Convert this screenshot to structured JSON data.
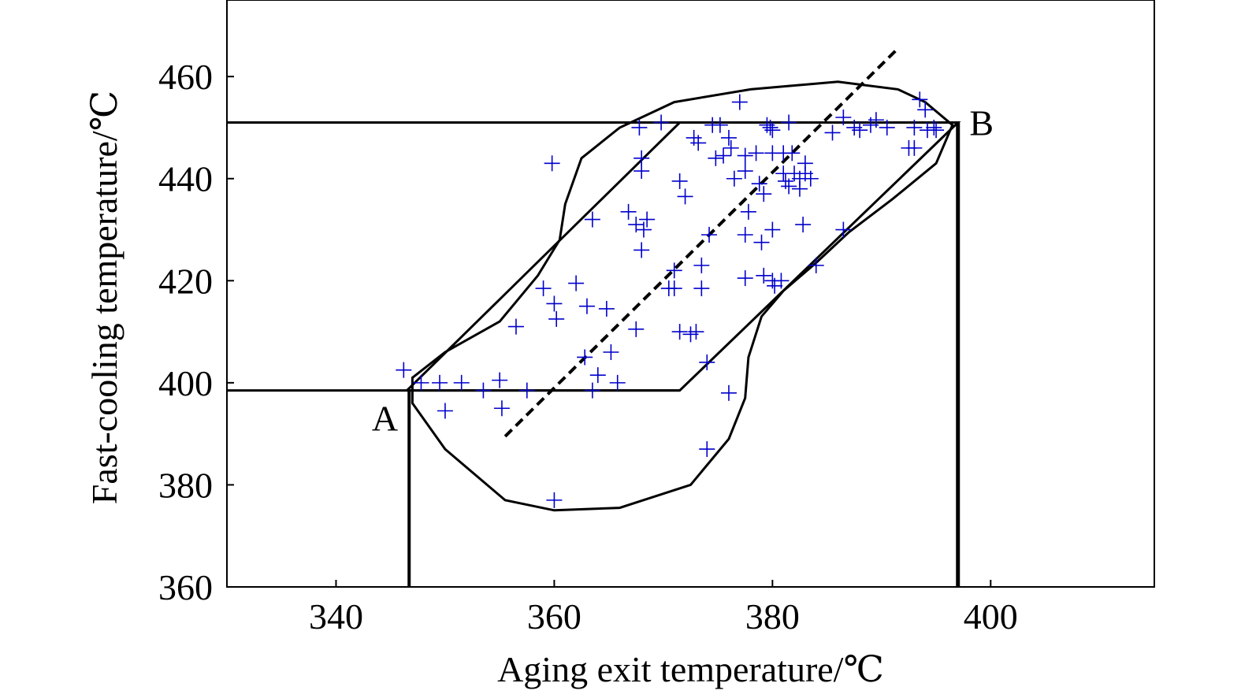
{
  "chart_data": {
    "type": "scatter",
    "title": "",
    "xlabel": "Aging exit temperature/℃",
    "ylabel": "Fast-cooling temperature/℃",
    "xlim": [
      330,
      415
    ],
    "ylim": [
      360,
      475
    ],
    "xticks": [
      340,
      360,
      380,
      400
    ],
    "yticks": [
      360,
      380,
      400,
      420,
      440,
      460
    ],
    "grid": false,
    "legend": "none",
    "colors": {
      "points": "#0000cc",
      "lines": "#000000"
    },
    "series": [
      {
        "marker": "plus",
        "points": [
          [
            346.2,
            402.5
          ],
          [
            347.8,
            400
          ],
          [
            349.5,
            400
          ],
          [
            350,
            394.5
          ],
          [
            351.5,
            400
          ],
          [
            353.5,
            398.5
          ],
          [
            355,
            400.5
          ],
          [
            355.2,
            395
          ],
          [
            357.5,
            398.5
          ],
          [
            356.5,
            411
          ],
          [
            359,
            418.5
          ],
          [
            360,
            415.5
          ],
          [
            360.2,
            412.5
          ],
          [
            359.8,
            443
          ],
          [
            360,
            377
          ],
          [
            362,
            419.5
          ],
          [
            363,
            415
          ],
          [
            362.8,
            405
          ],
          [
            363.5,
            398.5
          ],
          [
            363.5,
            432
          ],
          [
            364,
            401.5
          ],
          [
            364.8,
            414.5
          ],
          [
            365.2,
            406
          ],
          [
            365.8,
            400
          ],
          [
            366.8,
            433.5
          ],
          [
            367.8,
            450
          ],
          [
            368,
            444
          ],
          [
            368,
            441.5
          ],
          [
            367.5,
            431
          ],
          [
            368.2,
            430
          ],
          [
            368.5,
            432
          ],
          [
            368,
            426
          ],
          [
            367.5,
            410.5
          ],
          [
            369.8,
            451
          ],
          [
            370.5,
            418.5
          ],
          [
            371,
            422
          ],
          [
            371,
            418.5
          ],
          [
            371.5,
            410
          ],
          [
            371.5,
            439.5
          ],
          [
            372,
            436.5
          ],
          [
            372.5,
            409.5
          ],
          [
            372.8,
            448
          ],
          [
            373.2,
            447
          ],
          [
            373,
            410
          ],
          [
            373.5,
            423
          ],
          [
            373.5,
            418.5
          ],
          [
            374,
            404
          ],
          [
            374,
            387
          ],
          [
            374.2,
            429
          ],
          [
            374.5,
            450.5
          ],
          [
            374.8,
            444
          ],
          [
            375.2,
            450.5
          ],
          [
            375.5,
            444.5
          ],
          [
            376,
            448
          ],
          [
            376.2,
            446
          ],
          [
            376.5,
            440
          ],
          [
            376,
            398
          ],
          [
            377,
            455
          ],
          [
            377.5,
            444.5
          ],
          [
            377.5,
            441.5
          ],
          [
            377.5,
            429
          ],
          [
            377.8,
            433.5
          ],
          [
            377.5,
            420.5
          ],
          [
            378.5,
            445
          ],
          [
            378.8,
            439
          ],
          [
            379.2,
            437
          ],
          [
            379,
            427.5
          ],
          [
            379.2,
            421
          ],
          [
            379.5,
            450.5
          ],
          [
            379.8,
            450
          ],
          [
            380,
            449.5
          ],
          [
            380,
            445
          ],
          [
            380,
            430
          ],
          [
            380,
            420
          ],
          [
            380.2,
            419
          ],
          [
            380.8,
            420
          ],
          [
            381,
            445
          ],
          [
            381,
            441
          ],
          [
            381.2,
            439.5
          ],
          [
            381.5,
            451
          ],
          [
            381.5,
            438.5
          ],
          [
            381.8,
            445
          ],
          [
            382,
            441
          ],
          [
            382.5,
            438
          ],
          [
            382.5,
            440
          ],
          [
            383,
            441
          ],
          [
            383,
            443
          ],
          [
            383.5,
            440
          ],
          [
            382.8,
            431
          ],
          [
            384,
            423
          ],
          [
            385.5,
            449
          ],
          [
            386.5,
            452
          ],
          [
            386.5,
            430
          ],
          [
            387.5,
            450
          ],
          [
            388,
            449.5
          ],
          [
            389,
            450.5
          ],
          [
            389.5,
            451.5
          ],
          [
            390.5,
            450
          ],
          [
            392.5,
            446
          ],
          [
            393,
            450
          ],
          [
            393.5,
            455.5
          ],
          [
            394,
            453.5
          ],
          [
            394.2,
            449.5
          ],
          [
            394.8,
            450
          ],
          [
            393,
            446
          ],
          [
            395,
            449.5
          ]
        ]
      }
    ],
    "annotations": [
      {
        "label": "A",
        "x": 346.5,
        "y": 398.5
      },
      {
        "label": "B",
        "x": 397,
        "y": 451
      }
    ],
    "reference_lines": {
      "window_polygon": [
        [
          346.5,
          398.5
        ],
        [
          371.5,
          451
        ],
        [
          397,
          451
        ],
        [
          371.5,
          398.5
        ],
        [
          346.5,
          398.5
        ]
      ],
      "horizontal_upper": {
        "y": 451,
        "x_from": 330,
        "x_to": 397
      },
      "horizontal_lower": {
        "y": 398.5,
        "x_from": 330,
        "x_to": 371.5
      },
      "vertical_A": {
        "x": 346.7,
        "y_from": 360,
        "y_to": 398.5
      },
      "vertical_B": {
        "x": 397,
        "y_from": 360,
        "y_to": 451
      },
      "dashed_trend": [
        [
          355.5,
          389.5
        ],
        [
          391.5,
          465.5
        ]
      ],
      "envelope": [
        [
          347,
          401
        ],
        [
          350,
          406
        ],
        [
          355,
          412
        ],
        [
          358.5,
          421
        ],
        [
          360.5,
          428
        ],
        [
          361,
          435
        ],
        [
          362.5,
          444
        ],
        [
          366,
          450
        ],
        [
          371,
          455
        ],
        [
          378,
          457.5
        ],
        [
          386,
          459
        ],
        [
          391.5,
          457.5
        ],
        [
          394,
          455
        ],
        [
          396.5,
          450.5
        ],
        [
          395,
          443
        ],
        [
          391,
          436
        ],
        [
          387,
          429.5
        ],
        [
          384,
          423.5
        ],
        [
          381,
          418
        ],
        [
          379,
          413
        ],
        [
          377.8,
          405
        ],
        [
          377.5,
          397
        ],
        [
          376,
          389
        ],
        [
          372.5,
          380
        ],
        [
          366,
          375.5
        ],
        [
          360,
          375
        ],
        [
          355.5,
          377
        ],
        [
          350,
          387
        ],
        [
          347,
          396
        ],
        [
          347,
          401
        ]
      ]
    }
  }
}
